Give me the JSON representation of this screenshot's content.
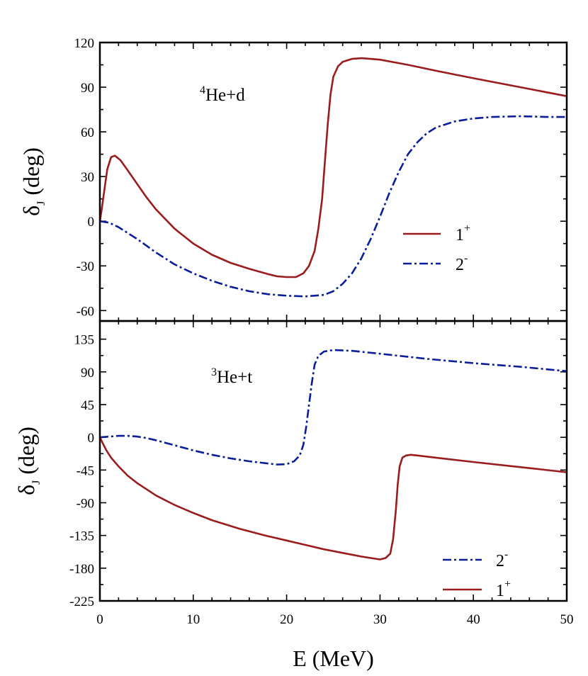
{
  "chart_data": [
    {
      "type": "line",
      "panel": "top",
      "annotation": {
        "sup": "4",
        "text": "He+d"
      },
      "ylabel": {
        "main": "δ",
        "sub": "J",
        "rest": " (deg)"
      },
      "xlabel": "",
      "xlim": [
        0,
        50
      ],
      "ylim": [
        -67,
        120
      ],
      "yticks": [
        120,
        90,
        60,
        30,
        0,
        -30,
        -60
      ],
      "ytick_labels": [
        "120",
        "90",
        "60",
        "30",
        "0",
        "-30",
        "-60"
      ],
      "legend": "center-right",
      "series": [
        {
          "name": "1+",
          "label_main": "1",
          "label_sup": "+",
          "color": "#9b1c1c",
          "dash": "solid",
          "x": [
            0,
            0.2,
            0.5,
            0.8,
            1.2,
            1.6,
            2.2,
            3,
            4,
            5,
            6,
            8,
            10,
            12,
            14,
            16,
            18,
            19,
            20,
            21,
            21.8,
            22.4,
            23,
            23.4,
            23.8,
            24.1,
            24.4,
            24.7,
            25,
            25.5,
            26,
            27,
            28,
            30,
            33,
            36,
            40,
            45,
            50
          ],
          "y": [
            0,
            8,
            22,
            35,
            43,
            44,
            41,
            34,
            25,
            16,
            8,
            -5,
            -15,
            -22.5,
            -28,
            -32,
            -35.5,
            -37,
            -37.5,
            -37.5,
            -35,
            -30,
            -20,
            -5,
            15,
            40,
            65,
            85,
            97,
            104,
            107,
            109,
            109.5,
            108.5,
            105,
            101,
            96,
            90,
            84
          ]
        },
        {
          "name": "2-",
          "label_main": "2",
          "label_sup": "-",
          "color": "#0b1e9a",
          "dash": "12 4 3 4",
          "x": [
            0,
            1,
            2,
            4,
            6,
            8,
            10,
            12,
            14,
            16,
            18,
            20,
            22,
            24,
            25,
            26,
            27,
            28,
            29,
            30,
            31,
            32,
            33,
            34,
            35,
            36,
            38,
            40,
            42,
            45,
            48,
            50
          ],
          "y": [
            0,
            -1,
            -4,
            -12,
            -21,
            -29,
            -35,
            -40,
            -44,
            -47,
            -49,
            -50,
            -50.5,
            -49.5,
            -47,
            -42,
            -35,
            -25,
            -12,
            3,
            19,
            33,
            45,
            53,
            59,
            63,
            67,
            69,
            70,
            70.5,
            70,
            70
          ]
        }
      ]
    },
    {
      "type": "line",
      "panel": "bottom",
      "annotation": {
        "sup": "3",
        "text": "He+t"
      },
      "ylabel": {
        "main": "δ",
        "sub": "J",
        "rest": " (deg)"
      },
      "xlabel": "E (MeV)",
      "xlim": [
        0,
        50
      ],
      "ylim": [
        -225,
        160
      ],
      "yticks": [
        135,
        90,
        45,
        0,
        -45,
        -90,
        -135,
        -180,
        -225
      ],
      "ytick_labels": [
        "135",
        "90",
        "45",
        "0",
        "-45",
        "-90",
        "-135",
        "-180",
        "-225"
      ],
      "xticks": [
        0,
        10,
        20,
        30,
        40,
        50
      ],
      "xtick_labels": [
        "0",
        "10",
        "20",
        "30",
        "40",
        "50"
      ],
      "legend": "bottom-right",
      "series": [
        {
          "name": "2-",
          "label_main": "2",
          "label_sup": "-",
          "color": "#0b1e9a",
          "dash": "12 4 3 4",
          "x": [
            0,
            1,
            2,
            3,
            4,
            5,
            6,
            8,
            10,
            12,
            14,
            16,
            18,
            19,
            20,
            20.8,
            21.4,
            21.8,
            22.1,
            22.4,
            22.7,
            23,
            23.4,
            24,
            25,
            27,
            30,
            35,
            40,
            45,
            50
          ],
          "y": [
            0,
            1,
            2,
            2,
            1,
            -1,
            -4,
            -11,
            -18,
            -24,
            -29,
            -33,
            -36,
            -37.5,
            -37,
            -33,
            -25,
            -10,
            15,
            45,
            75,
            100,
            112,
            118,
            120,
            119,
            115,
            108,
            102,
            97,
            91
          ]
        },
        {
          "name": "1+",
          "label_main": "1",
          "label_sup": "+",
          "color": "#9b1c1c",
          "dash": "solid",
          "x": [
            0,
            0.3,
            0.7,
            1.2,
            2,
            3,
            4,
            6,
            8,
            10,
            12,
            15,
            18,
            20,
            22,
            24,
            26,
            28,
            29,
            30,
            30.6,
            31.1,
            31.4,
            31.7,
            31.9,
            32.1,
            32.4,
            32.8,
            33.3,
            34,
            36,
            40,
            45,
            50
          ],
          "y": [
            0,
            -8,
            -18,
            -28,
            -40,
            -53,
            -63,
            -80,
            -93,
            -104,
            -114,
            -126,
            -136,
            -142,
            -148,
            -154,
            -159,
            -164,
            -166,
            -168,
            -166,
            -160,
            -140,
            -100,
            -65,
            -40,
            -28,
            -25,
            -24,
            -25,
            -28,
            -34,
            -41,
            -48
          ]
        }
      ]
    }
  ]
}
